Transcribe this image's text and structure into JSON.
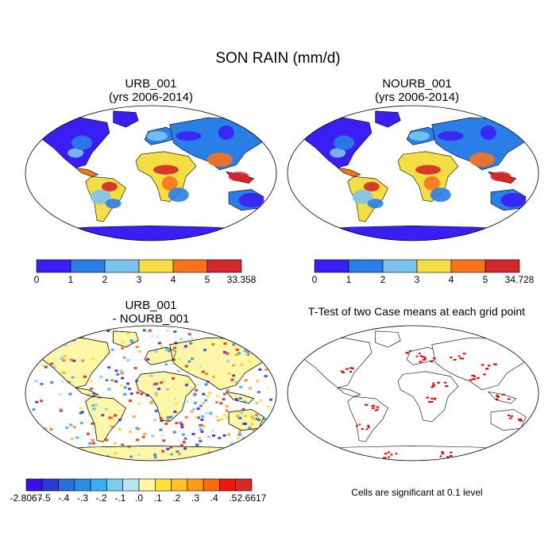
{
  "figure": {
    "title": "SON RAIN (mm/d)"
  },
  "panels": [
    {
      "title_line1": "URB_001",
      "title_line2": "(yrs 2006-2014)"
    },
    {
      "title_line1": "NOURB_001",
      "title_line2": "(yrs 2006-2014)"
    },
    {
      "title_line1": "URB_001",
      "title_line2": "- NOURB_001"
    },
    {
      "title_line1": "T-Test of two Case means at each grid point",
      "note": "Cells are significant at 0.1 level"
    }
  ],
  "chart_data": [
    {
      "type": "heatmap",
      "title": "URB_001 (yrs 2006-2014)",
      "map_projection": "robinson",
      "colorbar": {
        "colors": [
          "#3a1ff5",
          "#2a7ee8",
          "#7cc4ef",
          "#f5dd44",
          "#f7741c",
          "#d3282b"
        ],
        "tick_labels": [
          "0",
          "1",
          "2",
          "3",
          "4",
          "5",
          "33.358"
        ]
      }
    },
    {
      "type": "heatmap",
      "title": "NOURB_001 (yrs 2006-2014)",
      "map_projection": "robinson",
      "colorbar": {
        "colors": [
          "#3a1ff5",
          "#2a7ee8",
          "#7cc4ef",
          "#f5dd44",
          "#f7741c",
          "#d3282b"
        ],
        "tick_labels": [
          "0",
          "1",
          "2",
          "3",
          "4",
          "5",
          "34.728"
        ]
      }
    },
    {
      "type": "heatmap",
      "title": "URB_001 - NOURB_001",
      "map_projection": "robinson",
      "colorbar": {
        "colors": [
          "#3b10e6",
          "#2b3ad8",
          "#2b6ed8",
          "#2a8ee6",
          "#37aef0",
          "#7ecbf0",
          "#b8e4f5",
          "#fff7a8",
          "#ffe233",
          "#ffc125",
          "#ff9a17",
          "#ff6a10",
          "#f0150f",
          "#d52a28"
        ],
        "tick_labels": [
          "-2.8067",
          "-.5",
          "-.4",
          "-.3",
          "-.2",
          "-.1",
          ".0",
          ".1",
          ".2",
          ".3",
          ".4",
          ".5",
          "2.6617"
        ]
      }
    },
    {
      "type": "heatmap",
      "title": "T-Test of two Case means at each grid point",
      "map_projection": "robinson",
      "significance_level": 0.1,
      "marker_color": "#e00000"
    }
  ]
}
